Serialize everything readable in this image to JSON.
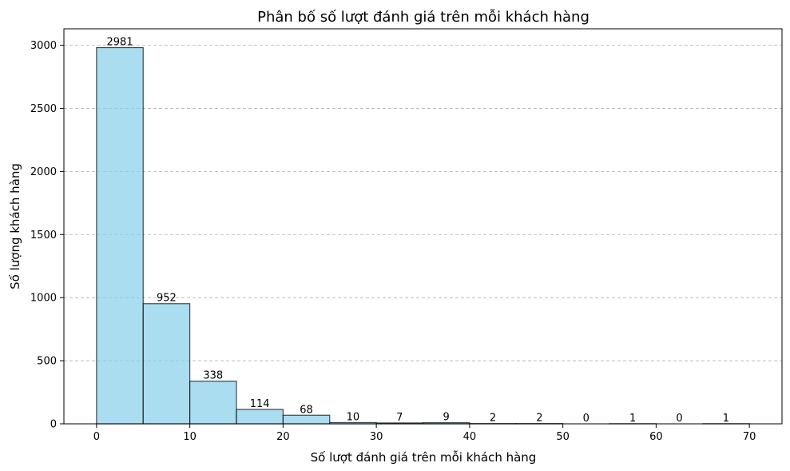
{
  "chart_data": {
    "type": "bar",
    "title": "Phân bố số lượt đánh giá trên mỗi khách hàng",
    "xlabel": "Số lượt đánh giá trên mỗi khách hàng",
    "ylabel": "Số lượng khách hàng",
    "bin_edges": [
      0,
      5,
      10,
      15,
      20,
      25,
      30,
      35,
      40,
      45,
      50,
      55,
      60,
      65,
      70
    ],
    "values": [
      2981,
      952,
      338,
      114,
      68,
      10,
      7,
      9,
      2,
      2,
      0,
      1,
      0,
      1
    ],
    "xlim": [
      -3.5,
      73.5
    ],
    "ylim": [
      0,
      3130
    ],
    "xticks": [
      0,
      10,
      20,
      30,
      40,
      50,
      60,
      70
    ],
    "yticks": [
      0,
      500,
      1000,
      1500,
      2000,
      2500,
      3000
    ],
    "grid": "y-dashed",
    "bar_color": "#87CEEB",
    "edge_color": "#000000",
    "grid_color": "#b0b0b0"
  }
}
